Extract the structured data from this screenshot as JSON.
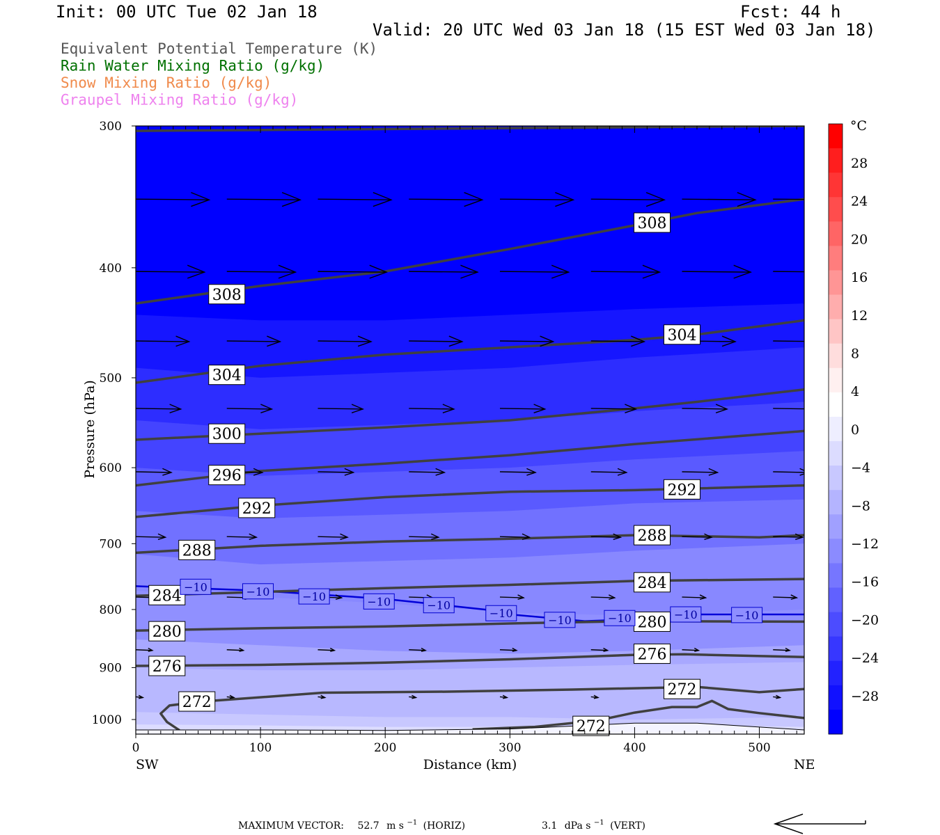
{
  "header": {
    "init": "Init: 00 UTC Tue 02 Jan 18",
    "fcst": "Fcst:   44 h",
    "valid": "Valid: 20 UTC Wed 03 Jan 18 (15 EST Wed 03 Jan 18)"
  },
  "legend": [
    {
      "label": "Equivalent Potential Temperature (K)",
      "color": "#555555"
    },
    {
      "label": "Rain Water Mixing Ratio (g/kg)",
      "color": "#007000"
    },
    {
      "label": "Snow Mixing Ratio (g/kg)",
      "color": "#f08a4b"
    },
    {
      "label": "Graupel Mixing Ratio (g/kg)",
      "color": "#ee82ee"
    }
  ],
  "colors": {
    "theta_line": "#404040",
    "isotherm": "#0000d8",
    "vector": "#000000",
    "bands": [
      "#0000ff",
      "#1616ff",
      "#2d2dff",
      "#4444ff",
      "#5a5aff",
      "#7171ff",
      "#8888ff",
      "#9f9fff",
      "#b6b6ff",
      "#cdcdff",
      "#e4e4ff"
    ]
  },
  "chart_data": {
    "type": "cross-section",
    "xlabel": "Distance (km)",
    "ylabel": "Pressure (hPa)",
    "xlim": [
      0,
      536
    ],
    "ylim": [
      1030,
      300
    ],
    "y_scale": "log",
    "x_ticks": [
      0,
      100,
      200,
      300,
      400,
      500
    ],
    "y_ticks": [
      300,
      400,
      500,
      600,
      700,
      800,
      900,
      1000
    ],
    "x_end_labels": {
      "left": "SW",
      "right": "NE"
    },
    "colorbar": {
      "unit": "°C",
      "labels": [
        "28",
        "24",
        "20",
        "16",
        "12",
        "8",
        "4",
        "0",
        "−4",
        "−8",
        "−12",
        "−16",
        "−20",
        "−24",
        "−28"
      ],
      "bins": [
        {
          "lo": -32,
          "hi": -28,
          "color": "#0000ff"
        },
        {
          "lo": -28,
          "hi": -24,
          "color": "#1616ff"
        },
        {
          "lo": -24,
          "hi": -20,
          "color": "#2d2dff"
        },
        {
          "lo": -20,
          "hi": -16,
          "color": "#4444ff"
        },
        {
          "lo": -16,
          "hi": -12,
          "color": "#5a5aff"
        },
        {
          "lo": -12,
          "hi": -8,
          "color": "#7171ff"
        },
        {
          "lo": -8,
          "hi": -4,
          "color": "#8888ff"
        },
        {
          "lo": -4,
          "hi": 0,
          "color": "#a0a0ff"
        },
        {
          "lo": 0,
          "hi": 4,
          "color": "#b8b8ff"
        },
        {
          "lo": 4,
          "hi": 8,
          "color": "#d0d0ff"
        },
        {
          "lo": 8,
          "hi": 12,
          "color": "#e8e8ff"
        }
      ]
    },
    "temperature_bands": [
      {
        "color": "#0000ff",
        "top": [
          [
            0,
            300
          ],
          [
            536,
            300
          ]
        ]
      },
      {
        "color": "#1616ff",
        "top": [
          [
            0,
            440
          ],
          [
            100,
            445
          ],
          [
            200,
            445
          ],
          [
            300,
            440
          ],
          [
            400,
            435
          ],
          [
            536,
            430
          ]
        ]
      },
      {
        "color": "#2d2dff",
        "top": [
          [
            0,
            490
          ],
          [
            100,
            500
          ],
          [
            200,
            495
          ],
          [
            300,
            490
          ],
          [
            400,
            480
          ],
          [
            536,
            470
          ]
        ]
      },
      {
        "color": "#4444ff",
        "top": [
          [
            0,
            545
          ],
          [
            100,
            555
          ],
          [
            200,
            550
          ],
          [
            300,
            545
          ],
          [
            400,
            535
          ],
          [
            536,
            525
          ]
        ]
      },
      {
        "color": "#5a5aff",
        "top": [
          [
            0,
            600
          ],
          [
            100,
            610
          ],
          [
            200,
            605
          ],
          [
            300,
            600
          ],
          [
            400,
            590
          ],
          [
            536,
            580
          ]
        ]
      },
      {
        "color": "#7171ff",
        "top": [
          [
            0,
            655
          ],
          [
            100,
            665
          ],
          [
            200,
            660
          ],
          [
            300,
            655
          ],
          [
            400,
            645
          ],
          [
            536,
            640
          ]
        ]
      },
      {
        "color": "#8888ff",
        "top": [
          [
            0,
            715
          ],
          [
            100,
            730
          ],
          [
            200,
            725
          ],
          [
            300,
            720
          ],
          [
            400,
            710
          ],
          [
            536,
            700
          ]
        ]
      },
      {
        "color": "#9090ff",
        "top": [
          [
            0,
            770
          ],
          [
            100,
            780
          ],
          [
            200,
            790
          ],
          [
            300,
            805
          ],
          [
            400,
            810
          ],
          [
            536,
            800
          ]
        ]
      },
      {
        "color": "#a8a8ff",
        "top": [
          [
            0,
            850
          ],
          [
            100,
            860
          ],
          [
            200,
            870
          ],
          [
            300,
            875
          ],
          [
            400,
            870
          ],
          [
            536,
            860
          ]
        ]
      },
      {
        "color": "#b8b8ff",
        "top": [
          [
            0,
            900
          ],
          [
            100,
            905
          ],
          [
            200,
            905
          ],
          [
            300,
            900
          ],
          [
            400,
            895
          ],
          [
            536,
            890
          ]
        ]
      },
      {
        "color": "#c8c8ff",
        "top": [
          [
            0,
            985
          ],
          [
            100,
            990
          ],
          [
            200,
            995
          ],
          [
            300,
            995
          ],
          [
            400,
            1000
          ],
          [
            536,
            995
          ]
        ]
      },
      {
        "color": "#dcdcff",
        "top": [
          [
            0,
            1010
          ],
          [
            100,
            1012
          ],
          [
            200,
            1015
          ],
          [
            300,
            1015
          ],
          [
            400,
            1010
          ],
          [
            536,
            1015
          ]
        ]
      }
    ],
    "theta_e_lines": [
      {
        "value": 308,
        "points": [
          [
            0,
            303
          ],
          [
            536,
            300
          ]
        ]
      },
      {
        "value": 308,
        "points": [
          [
            0,
            430
          ],
          [
            100,
            415
          ],
          [
            200,
            403
          ],
          [
            300,
            385
          ],
          [
            400,
            367
          ],
          [
            450,
            358
          ],
          [
            536,
            348
          ]
        ],
        "labels": [
          [
            73,
            422
          ],
          [
            414,
            365
          ]
        ]
      },
      {
        "value": 304,
        "points": [
          [
            0,
            505
          ],
          [
            100,
            488
          ],
          [
            200,
            477
          ],
          [
            300,
            470
          ],
          [
            400,
            463
          ],
          [
            450,
            458
          ],
          [
            536,
            445
          ]
        ],
        "labels": [
          [
            73,
            497
          ],
          [
            438,
            458
          ]
        ]
      },
      {
        "value": 300,
        "points": [
          [
            0,
            567
          ],
          [
            100,
            560
          ],
          [
            200,
            553
          ],
          [
            300,
            545
          ],
          [
            400,
            532
          ],
          [
            450,
            525
          ],
          [
            536,
            512
          ]
        ],
        "labels": [
          [
            73,
            560
          ]
        ]
      },
      {
        "value": 296,
        "points": [
          [
            0,
            622
          ],
          [
            100,
            604
          ],
          [
            200,
            595
          ],
          [
            300,
            585
          ],
          [
            400,
            572
          ],
          [
            536,
            557
          ]
        ],
        "labels": [
          [
            73,
            609
          ]
        ]
      },
      {
        "value": 292,
        "points": [
          [
            0,
            663
          ],
          [
            100,
            648
          ],
          [
            200,
            637
          ],
          [
            300,
            630
          ],
          [
            400,
            628
          ],
          [
            536,
            622
          ]
        ],
        "labels": [
          [
            97,
            651
          ],
          [
            438,
            627
          ]
        ]
      },
      {
        "value": 288,
        "points": [
          [
            0,
            713
          ],
          [
            100,
            703
          ],
          [
            200,
            697
          ],
          [
            300,
            693
          ],
          [
            400,
            688
          ],
          [
            500,
            691
          ],
          [
            536,
            688
          ]
        ],
        "labels": [
          [
            49,
            709
          ],
          [
            414,
            688
          ]
        ]
      },
      {
        "value": 284,
        "points": [
          [
            0,
            778
          ],
          [
            100,
            772
          ],
          [
            200,
            766
          ],
          [
            300,
            761
          ],
          [
            400,
            755
          ],
          [
            536,
            752
          ]
        ],
        "labels": [
          [
            25,
            777
          ],
          [
            414,
            757
          ]
        ]
      },
      {
        "value": 280,
        "points": [
          [
            0,
            835
          ],
          [
            100,
            831
          ],
          [
            200,
            828
          ],
          [
            300,
            823
          ],
          [
            400,
            819
          ],
          [
            536,
            820
          ]
        ],
        "labels": [
          [
            25,
            836
          ],
          [
            414,
            820
          ]
        ]
      },
      {
        "value": 276,
        "points": [
          [
            0,
            897
          ],
          [
            100,
            895
          ],
          [
            200,
            891
          ],
          [
            300,
            885
          ],
          [
            400,
            877
          ],
          [
            440,
            876
          ],
          [
            536,
            881
          ]
        ],
        "labels": [
          [
            25,
            897
          ],
          [
            414,
            875
          ]
        ]
      },
      {
        "value": 272,
        "points": [
          [
            49,
            965
          ],
          [
            150,
            947
          ],
          [
            250,
            945
          ],
          [
            350,
            941
          ],
          [
            450,
            936
          ],
          [
            500,
            946
          ],
          [
            536,
            940
          ]
        ],
        "labels": [
          [
            49,
            964
          ],
          [
            438,
            940
          ]
        ]
      },
      {
        "value": 272,
        "points": [
          [
            270,
            1020
          ],
          [
            320,
            1015
          ],
          [
            370,
            1002
          ],
          [
            400,
            986
          ],
          [
            430,
            975
          ],
          [
            450,
            975
          ],
          [
            462,
            963
          ],
          [
            475,
            979
          ],
          [
            500,
            987
          ],
          [
            536,
            997
          ]
        ],
        "labels": [
          [
            365,
            1013
          ]
        ]
      },
      {
        "value": 272,
        "points": [
          [
            35,
            1022
          ],
          [
            25,
            1005
          ],
          [
            20,
            988
          ],
          [
            27,
            972
          ],
          [
            40,
            968
          ],
          [
            49,
            965
          ]
        ]
      }
    ],
    "isotherm_minus10": {
      "value": "−10",
      "points": [
        [
          0,
          763
        ],
        [
          100,
          770
        ],
        [
          200,
          783
        ],
        [
          280,
          800
        ],
        [
          300,
          808
        ],
        [
          360,
          819
        ],
        [
          400,
          816
        ],
        [
          450,
          808
        ],
        [
          536,
          808
        ]
      ],
      "labels": [
        [
          48,
          764
        ],
        [
          98,
          771
        ],
        [
          143,
          779
        ],
        [
          195,
          787
        ],
        [
          243,
          793
        ],
        [
          293,
          806
        ],
        [
          340,
          817
        ],
        [
          388,
          814
        ],
        [
          441,
          808
        ],
        [
          490,
          809
        ]
      ]
    },
    "surface_line": [
      [
        0,
        1022
      ],
      [
        100,
        1022
      ],
      [
        200,
        1023
      ],
      [
        300,
        1020
      ],
      [
        400,
        1008
      ],
      [
        450,
        1008
      ],
      [
        536,
        1022
      ]
    ],
    "vector_rows": [
      {
        "p": 348,
        "len": 62
      },
      {
        "p": 403,
        "len": 58
      },
      {
        "p": 464,
        "len": 45
      },
      {
        "p": 532,
        "len": 38
      },
      {
        "p": 605,
        "len": 30
      },
      {
        "p": 690,
        "len": 25
      },
      {
        "p": 780,
        "len": 20
      },
      {
        "p": 868,
        "len": 14
      },
      {
        "p": 955,
        "len": 6
      }
    ],
    "vector_columns": [
      0,
      73,
      146,
      219,
      292,
      365,
      438,
      511
    ],
    "footer": {
      "prefix": "MAXIMUM VECTOR:",
      "horiz_value": "52.7",
      "horiz_unit": "m s",
      "horiz_exp": "−1",
      "horiz_tag": "(HORIZ)",
      "vert_value": "3.1",
      "vert_unit": "dPa s",
      "vert_exp": "−1",
      "vert_tag": "(VERT)"
    }
  }
}
